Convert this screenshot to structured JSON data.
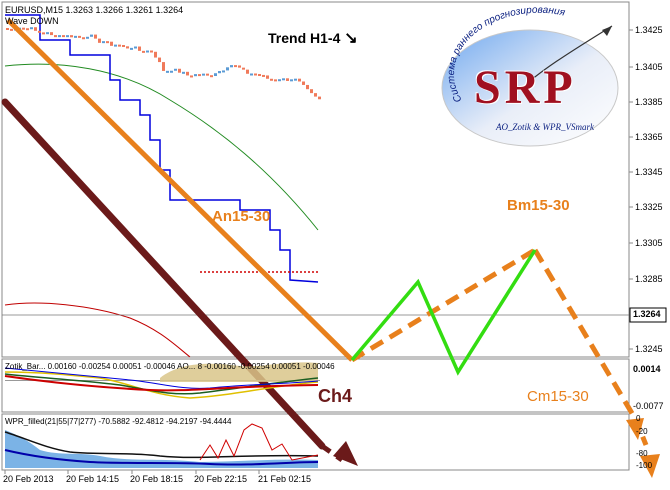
{
  "symbol_header": "EURUSD,M15  1.3263 1.3266 1.3261 1.3264",
  "indicator_name": "Wave DOWN",
  "trend_label": "Trend H1-4",
  "trend_arrow": "↘",
  "logo": {
    "arc_text": "Система раннего прогнозирования",
    "letters": "SRP",
    "subtitle": "AO_Zotik & WPR_VSmark"
  },
  "annotations": {
    "an": "An15-30",
    "bm": "Bm15-30",
    "cm": "Cm15-30",
    "ch4": "Ch4"
  },
  "price_axis": {
    "ticks": [
      "1.3425",
      "1.3405",
      "1.3385",
      "1.3365",
      "1.3345",
      "1.3325",
      "1.3305",
      "1.3285",
      "1.3245"
    ],
    "current_price": "1.3264"
  },
  "osc1": {
    "text": "Zotik_Bar... 0.00160 -0.00254 0.00051 -0.00046  AO... 8 -0.00160 -0.00254 0.00051 -0.00046",
    "axis": [
      "0.0014",
      "-0.0077"
    ]
  },
  "osc2": {
    "text": "WPR_filled(21|55|77|277)  -70.5882 -92.4812 -94.2197 -94.4444",
    "axis": [
      "0",
      "-20",
      "-80",
      "-100"
    ]
  },
  "time_axis": [
    "20 Feb 2013",
    "20 Feb 14:15",
    "20 Feb 18:15",
    "20 Feb 22:15",
    "21 Feb 02:15"
  ],
  "colors": {
    "bull_candle": "#5b9bd5",
    "bear_candle": "#f07a5a",
    "orange": "#e8801c",
    "brown": "#6b1a1a",
    "green": "#33dd11",
    "blue_line": "#0000dd",
    "ma_green": "#228b22",
    "ma_red": "#c00000"
  }
}
